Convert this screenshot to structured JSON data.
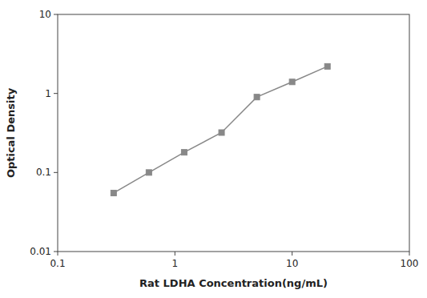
{
  "chart_data": {
    "type": "line",
    "x": [
      0.3,
      0.6,
      1.2,
      2.5,
      5.0,
      10.0,
      20.0
    ],
    "series": [
      {
        "values": [
          0.055,
          0.1,
          0.18,
          0.32,
          0.9,
          1.4,
          2.2
        ],
        "color": "#888888",
        "marker": "square",
        "line_style": "solid"
      }
    ],
    "xlabel": "Rat LDHA Concentration(ng/mL)",
    "ylabel": "Optical Density",
    "xlim": [
      0.1,
      100
    ],
    "ylim": [
      0.01,
      10
    ],
    "xticks": [
      0.1,
      1,
      10,
      100
    ],
    "yticks": [
      0.01,
      0.1,
      1,
      10
    ],
    "log": true,
    "grid": false
  }
}
